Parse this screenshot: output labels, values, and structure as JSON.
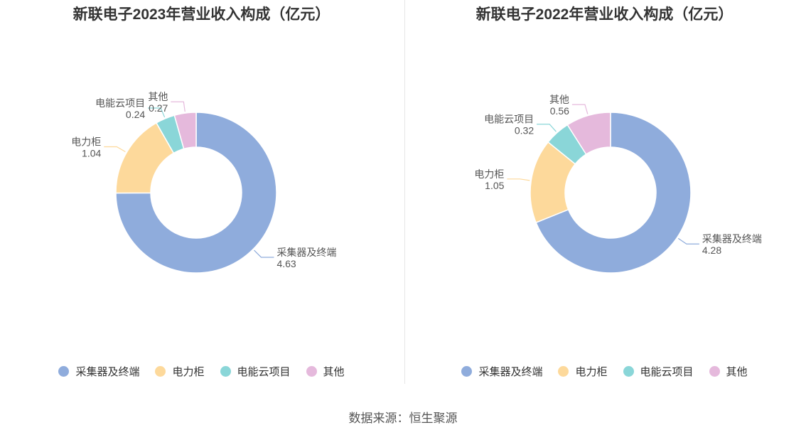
{
  "source": "数据来源：恒生聚源",
  "colors": [
    "#8facdc",
    "#fdd99b",
    "#8ad6d8",
    "#e5b9dc"
  ],
  "chart_data": [
    {
      "type": "pie",
      "title": "新联电子2023年营业收入构成（亿元）",
      "categories": [
        "采集器及终端",
        "电力柜",
        "电能云项目",
        "其他"
      ],
      "values": [
        4.63,
        1.04,
        0.24,
        0.27
      ],
      "value_labels": [
        "4.63",
        "1.04",
        "0.24",
        "0.27"
      ],
      "donut": true,
      "legend": "bottom"
    },
    {
      "type": "pie",
      "title": "新联电子2022年营业收入构成（亿元）",
      "categories": [
        "采集器及终端",
        "电力柜",
        "电能云项目",
        "其他"
      ],
      "values": [
        4.28,
        1.05,
        0.32,
        0.56
      ],
      "value_labels": [
        "4.28",
        "1.05",
        "0.32",
        "0.56"
      ],
      "donut": true,
      "legend": "bottom"
    }
  ]
}
